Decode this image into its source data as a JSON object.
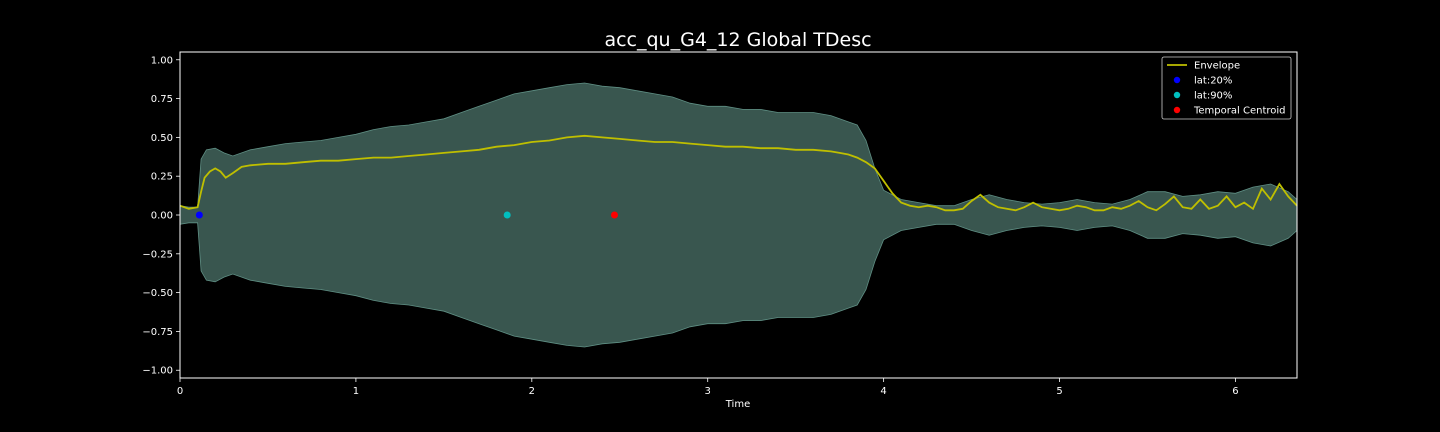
{
  "chart_data": {
    "type": "line",
    "title": "acc_qu_G4_12 Global TDesc",
    "xlabel": "Time",
    "ylabel": "",
    "xlim": [
      0,
      6.35
    ],
    "ylim": [
      -1.05,
      1.05
    ],
    "x_ticks": [
      0,
      1,
      2,
      3,
      4,
      5,
      6
    ],
    "y_ticks": [
      1.0,
      0.75,
      0.5,
      0.25,
      0.0,
      -0.25,
      -0.5,
      -0.75,
      -1.0
    ],
    "x_tick_labels": [
      "0",
      "1",
      "2",
      "3",
      "4",
      "5",
      "6"
    ],
    "y_tick_labels": [
      "1.00",
      "0.75",
      "0.50",
      "0.25",
      "0.00",
      "−0.25",
      "−0.50",
      "−0.75",
      "−1.00"
    ],
    "grid": false,
    "legend": {
      "placement": "top-right",
      "entries": [
        "Envelope",
        "lat:20%",
        "lat:90%",
        "Temporal Centroid"
      ]
    },
    "waveform": {
      "color": "#5f8f84",
      "points": [
        [
          0.0,
          0.06
        ],
        [
          0.05,
          0.05
        ],
        [
          0.1,
          0.05
        ],
        [
          0.11,
          0.2
        ],
        [
          0.12,
          0.36
        ],
        [
          0.15,
          0.42
        ],
        [
          0.2,
          0.43
        ],
        [
          0.25,
          0.4
        ],
        [
          0.3,
          0.38
        ],
        [
          0.4,
          0.42
        ],
        [
          0.5,
          0.44
        ],
        [
          0.6,
          0.46
        ],
        [
          0.7,
          0.47
        ],
        [
          0.8,
          0.48
        ],
        [
          0.9,
          0.5
        ],
        [
          1.0,
          0.52
        ],
        [
          1.1,
          0.55
        ],
        [
          1.2,
          0.57
        ],
        [
          1.3,
          0.58
        ],
        [
          1.4,
          0.6
        ],
        [
          1.5,
          0.62
        ],
        [
          1.6,
          0.66
        ],
        [
          1.7,
          0.7
        ],
        [
          1.8,
          0.74
        ],
        [
          1.9,
          0.78
        ],
        [
          2.0,
          0.8
        ],
        [
          2.1,
          0.82
        ],
        [
          2.2,
          0.84
        ],
        [
          2.3,
          0.85
        ],
        [
          2.4,
          0.83
        ],
        [
          2.5,
          0.82
        ],
        [
          2.6,
          0.8
        ],
        [
          2.7,
          0.78
        ],
        [
          2.8,
          0.76
        ],
        [
          2.9,
          0.72
        ],
        [
          3.0,
          0.7
        ],
        [
          3.1,
          0.7
        ],
        [
          3.2,
          0.68
        ],
        [
          3.3,
          0.68
        ],
        [
          3.4,
          0.66
        ],
        [
          3.5,
          0.66
        ],
        [
          3.6,
          0.66
        ],
        [
          3.7,
          0.64
        ],
        [
          3.8,
          0.6
        ],
        [
          3.85,
          0.58
        ],
        [
          3.9,
          0.48
        ],
        [
          3.95,
          0.3
        ],
        [
          4.0,
          0.16
        ],
        [
          4.1,
          0.1
        ],
        [
          4.2,
          0.08
        ],
        [
          4.3,
          0.06
        ],
        [
          4.4,
          0.06
        ],
        [
          4.5,
          0.1
        ],
        [
          4.6,
          0.13
        ],
        [
          4.7,
          0.1
        ],
        [
          4.8,
          0.08
        ],
        [
          4.9,
          0.07
        ],
        [
          5.0,
          0.08
        ],
        [
          5.1,
          0.1
        ],
        [
          5.2,
          0.08
        ],
        [
          5.3,
          0.07
        ],
        [
          5.4,
          0.1
        ],
        [
          5.5,
          0.15
        ],
        [
          5.6,
          0.15
        ],
        [
          5.7,
          0.12
        ],
        [
          5.8,
          0.13
        ],
        [
          5.9,
          0.15
        ],
        [
          6.0,
          0.14
        ],
        [
          6.1,
          0.18
        ],
        [
          6.2,
          0.2
        ],
        [
          6.3,
          0.15
        ],
        [
          6.35,
          0.1
        ]
      ]
    },
    "series": [
      {
        "name": "Envelope",
        "color": "#bfbf00",
        "x": [
          0.0,
          0.05,
          0.1,
          0.12,
          0.14,
          0.17,
          0.2,
          0.23,
          0.26,
          0.3,
          0.35,
          0.4,
          0.5,
          0.6,
          0.7,
          0.8,
          0.9,
          1.0,
          1.1,
          1.2,
          1.3,
          1.4,
          1.5,
          1.6,
          1.7,
          1.8,
          1.9,
          2.0,
          2.1,
          2.2,
          2.3,
          2.4,
          2.5,
          2.6,
          2.7,
          2.8,
          2.9,
          3.0,
          3.1,
          3.2,
          3.3,
          3.4,
          3.5,
          3.6,
          3.7,
          3.75,
          3.8,
          3.85,
          3.9,
          3.95,
          4.0,
          4.05,
          4.1,
          4.15,
          4.2,
          4.25,
          4.3,
          4.35,
          4.4,
          4.45,
          4.5,
          4.55,
          4.6,
          4.65,
          4.7,
          4.75,
          4.8,
          4.85,
          4.9,
          4.95,
          5.0,
          5.05,
          5.1,
          5.15,
          5.2,
          5.25,
          5.3,
          5.35,
          5.4,
          5.45,
          5.5,
          5.55,
          5.6,
          5.65,
          5.7,
          5.75,
          5.8,
          5.85,
          5.9,
          5.95,
          6.0,
          6.05,
          6.1,
          6.15,
          6.2,
          6.25,
          6.3,
          6.35
        ],
        "y": [
          0.06,
          0.04,
          0.05,
          0.15,
          0.24,
          0.28,
          0.3,
          0.28,
          0.24,
          0.27,
          0.31,
          0.32,
          0.33,
          0.33,
          0.34,
          0.35,
          0.35,
          0.36,
          0.37,
          0.37,
          0.38,
          0.39,
          0.4,
          0.41,
          0.42,
          0.44,
          0.45,
          0.47,
          0.48,
          0.5,
          0.51,
          0.5,
          0.49,
          0.48,
          0.47,
          0.47,
          0.46,
          0.45,
          0.44,
          0.44,
          0.43,
          0.43,
          0.42,
          0.42,
          0.41,
          0.4,
          0.39,
          0.37,
          0.34,
          0.3,
          0.22,
          0.14,
          0.08,
          0.06,
          0.05,
          0.06,
          0.05,
          0.03,
          0.03,
          0.04,
          0.09,
          0.13,
          0.08,
          0.05,
          0.04,
          0.03,
          0.05,
          0.08,
          0.05,
          0.04,
          0.03,
          0.04,
          0.06,
          0.05,
          0.03,
          0.03,
          0.05,
          0.04,
          0.06,
          0.09,
          0.05,
          0.03,
          0.07,
          0.12,
          0.05,
          0.04,
          0.1,
          0.04,
          0.06,
          0.12,
          0.05,
          0.08,
          0.04,
          0.17,
          0.1,
          0.2,
          0.12,
          0.06
        ]
      },
      {
        "name": "lat:20%",
        "color": "#0000ff",
        "x": [
          0.11
        ],
        "y": [
          0.0
        ]
      },
      {
        "name": "lat:90%",
        "color": "#00bfbf",
        "x": [
          1.86
        ],
        "y": [
          0.0
        ]
      },
      {
        "name": "Temporal Centroid",
        "color": "#ff0000",
        "x": [
          2.47
        ],
        "y": [
          0.0
        ]
      }
    ]
  }
}
